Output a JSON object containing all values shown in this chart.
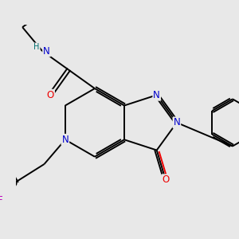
{
  "bg_color": "#e8e8e8",
  "bond_color": "#000000",
  "bond_width": 1.4,
  "atom_colors": {
    "N": "#0000cc",
    "O": "#ee0000",
    "F": "#bb00bb",
    "H_label": "#007070",
    "C": "#000000"
  },
  "font_size_atom": 8.5,
  "font_size_h": 7.0
}
